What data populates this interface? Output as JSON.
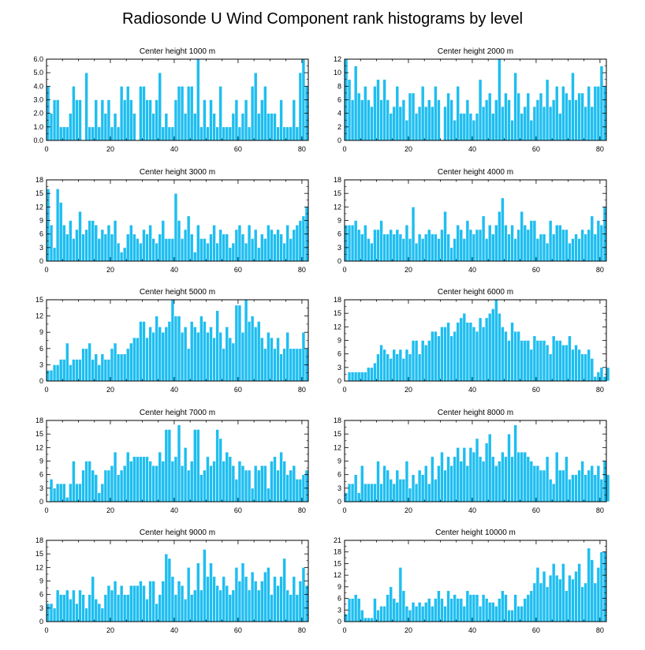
{
  "figure_title": "Radiosonde U Wind Component rank histograms by level",
  "colors": {
    "bar": "#1EBEF0",
    "bar_edge": "#ffffff",
    "axis": "#000000"
  },
  "chart_data": [
    {
      "type": "bar",
      "title": "Center height 1000 m",
      "xlim": [
        0,
        82
      ],
      "ylim": [
        0,
        6
      ],
      "yticks": [
        "0.0",
        "1.0",
        "2.0",
        "3.0",
        "4.0",
        "5.0",
        "6.0"
      ],
      "xticks": [
        "0",
        "20",
        "40",
        "60",
        "80"
      ],
      "values": [
        4,
        2,
        3,
        3,
        1,
        1,
        1,
        2,
        4,
        3,
        3,
        0,
        5,
        1,
        1,
        3,
        1,
        3,
        2,
        3,
        1,
        2,
        1,
        4,
        3,
        4,
        3,
        2,
        0,
        4,
        4,
        3,
        3,
        2,
        3,
        5,
        1,
        2,
        1,
        1,
        3,
        4,
        4,
        2,
        4,
        4,
        2,
        6,
        1,
        3,
        1,
        3,
        2,
        1,
        4,
        1,
        1,
        1,
        2,
        3,
        1,
        2,
        3,
        1,
        4,
        5,
        2,
        3,
        4,
        2,
        2,
        2,
        1,
        3,
        1,
        1,
        1,
        3,
        1,
        5,
        6,
        4
      ]
    },
    {
      "type": "bar",
      "title": "Center height 2000 m",
      "xlim": [
        0,
        82
      ],
      "ylim": [
        0,
        12
      ],
      "yticks": [
        "0",
        "2",
        "4",
        "6",
        "8",
        "10",
        "12"
      ],
      "xticks": [
        "0",
        "20",
        "40",
        "60",
        "80"
      ],
      "values": [
        12,
        9,
        6,
        11,
        7,
        6,
        8,
        6,
        5,
        8,
        9,
        6,
        9,
        6,
        4,
        5,
        8,
        5,
        6,
        3,
        7,
        7,
        4,
        5,
        8,
        5,
        6,
        5,
        8,
        6,
        0,
        5,
        7,
        6,
        3,
        8,
        4,
        4,
        6,
        4,
        3,
        4,
        9,
        5,
        6,
        7,
        4,
        6,
        12,
        5,
        7,
        6,
        3,
        10,
        7,
        4,
        5,
        7,
        3,
        5,
        6,
        7,
        5,
        9,
        5,
        6,
        8,
        4,
        8,
        7,
        6,
        10,
        6,
        7,
        7,
        5,
        8,
        5,
        8,
        8,
        11,
        8
      ]
    },
    {
      "type": "bar",
      "title": "Center height 3000 m",
      "xlim": [
        0,
        82
      ],
      "ylim": [
        0,
        18
      ],
      "yticks": [
        "0",
        "3",
        "6",
        "9",
        "12",
        "15",
        "18"
      ],
      "xticks": [
        "0",
        "20",
        "40",
        "60",
        "80"
      ],
      "values": [
        16,
        8,
        3,
        16,
        13,
        8,
        6,
        9,
        5,
        7,
        11,
        6,
        7,
        9,
        9,
        8,
        5,
        7,
        6,
        8,
        6,
        9,
        4,
        2,
        3,
        6,
        8,
        6,
        5,
        4,
        7,
        6,
        8,
        5,
        4,
        6,
        9,
        5,
        5,
        5,
        15,
        9,
        5,
        7,
        10,
        6,
        2,
        8,
        5,
        5,
        4,
        6,
        8,
        4,
        7,
        6,
        6,
        3,
        4,
        7,
        8,
        6,
        4,
        8,
        5,
        7,
        3,
        6,
        5,
        8,
        7,
        6,
        7,
        6,
        4,
        8,
        5,
        7,
        8,
        9,
        10,
        12
      ]
    },
    {
      "type": "bar",
      "title": "Center height 4000 m",
      "xlim": [
        0,
        82
      ],
      "ylim": [
        0,
        18
      ],
      "yticks": [
        "0",
        "3",
        "6",
        "9",
        "12",
        "15",
        "18"
      ],
      "xticks": [
        "0",
        "20",
        "40",
        "60",
        "80"
      ],
      "values": [
        8,
        8,
        8,
        9,
        7,
        6,
        8,
        5,
        4,
        7,
        7,
        9,
        6,
        6,
        7,
        6,
        7,
        6,
        5,
        8,
        5,
        12,
        4,
        6,
        5,
        6,
        7,
        6,
        6,
        5,
        7,
        11,
        6,
        3,
        5,
        8,
        7,
        5,
        9,
        7,
        6,
        7,
        7,
        10,
        5,
        8,
        6,
        8,
        11,
        14,
        8,
        6,
        8,
        5,
        7,
        11,
        8,
        7,
        9,
        9,
        5,
        6,
        6,
        4,
        9,
        6,
        8,
        8,
        7,
        7,
        4,
        5,
        6,
        5,
        7,
        6,
        7,
        10,
        6,
        9,
        8,
        12
      ]
    },
    {
      "type": "bar",
      "title": "Center height 5000 m",
      "xlim": [
        0,
        82
      ],
      "ylim": [
        0,
        15
      ],
      "yticks": [
        "0",
        "3",
        "6",
        "9",
        "12",
        "15"
      ],
      "xticks": [
        "0",
        "20",
        "40",
        "60",
        "80"
      ],
      "values": [
        2,
        2,
        3,
        3,
        4,
        4,
        7,
        3,
        4,
        4,
        4,
        6,
        6,
        7,
        4,
        5,
        3,
        5,
        4,
        4,
        6,
        7,
        5,
        5,
        5,
        6,
        7,
        8,
        8,
        11,
        11,
        8,
        10,
        9,
        12,
        10,
        9,
        10,
        11,
        15,
        12,
        12,
        9,
        10,
        6,
        11,
        10,
        9,
        12,
        11,
        9,
        10,
        8,
        13,
        9,
        6,
        10,
        8,
        7,
        14,
        14,
        9,
        15,
        11,
        12,
        10,
        11,
        8,
        6,
        9,
        8,
        6,
        8,
        5,
        6,
        9,
        6,
        6,
        6,
        6,
        9,
        6
      ]
    },
    {
      "type": "bar",
      "title": "Center height 6000 m",
      "xlim": [
        0,
        82
      ],
      "ylim": [
        0,
        18
      ],
      "yticks": [
        "0",
        "3",
        "6",
        "9",
        "12",
        "15",
        "18"
      ],
      "xticks": [
        "0",
        "20",
        "40",
        "60",
        "80"
      ],
      "values": [
        0,
        2,
        2,
        2,
        2,
        2,
        2,
        3,
        3,
        4,
        6,
        8,
        7,
        6,
        5,
        7,
        6,
        7,
        5,
        7,
        6,
        9,
        9,
        6,
        9,
        8,
        9,
        11,
        11,
        10,
        12,
        12,
        13,
        10,
        11,
        13,
        14,
        15,
        13,
        13,
        12,
        11,
        14,
        12,
        14,
        15,
        16,
        18,
        15,
        12,
        11,
        9,
        13,
        11,
        11,
        9,
        9,
        9,
        7,
        10,
        9,
        9,
        9,
        8,
        6,
        10,
        9,
        9,
        8,
        8,
        10,
        7,
        8,
        7,
        6,
        6,
        7,
        5,
        1,
        2,
        3,
        1,
        3
      ]
    },
    {
      "type": "bar",
      "title": "Center height 7000 m",
      "xlim": [
        0,
        82
      ],
      "ylim": [
        0,
        18
      ],
      "yticks": [
        "0",
        "3",
        "6",
        "9",
        "12",
        "15",
        "18"
      ],
      "xticks": [
        "0",
        "20",
        "40",
        "60",
        "80"
      ],
      "values": [
        0,
        5,
        3,
        4,
        4,
        4,
        1,
        4,
        9,
        4,
        4,
        7,
        9,
        9,
        7,
        6,
        2,
        4,
        7,
        7,
        8,
        11,
        6,
        7,
        8,
        11,
        9,
        10,
        10,
        10,
        10,
        10,
        9,
        8,
        8,
        11,
        9,
        16,
        16,
        9,
        10,
        17,
        8,
        12,
        7,
        9,
        16,
        16,
        6,
        7,
        10,
        8,
        9,
        16,
        14,
        9,
        11,
        10,
        8,
        5,
        9,
        8,
        7,
        7,
        3,
        8,
        7,
        8,
        8,
        3,
        9,
        10,
        7,
        11,
        9,
        6,
        7,
        8,
        5,
        5,
        6,
        7
      ]
    },
    {
      "type": "bar",
      "title": "Center height 8000 m",
      "xlim": [
        0,
        82
      ],
      "ylim": [
        0,
        18
      ],
      "yticks": [
        "0",
        "3",
        "6",
        "9",
        "12",
        "15",
        "18"
      ],
      "xticks": [
        "0",
        "20",
        "40",
        "60",
        "80"
      ],
      "values": [
        2,
        4,
        4,
        6,
        2,
        8,
        4,
        4,
        4,
        4,
        9,
        4,
        8,
        7,
        5,
        4,
        7,
        5,
        5,
        9,
        3,
        6,
        4,
        7,
        6,
        8,
        4,
        10,
        5,
        8,
        11,
        7,
        10,
        8,
        10,
        12,
        9,
        12,
        8,
        12,
        11,
        14,
        10,
        9,
        13,
        15,
        10,
        8,
        9,
        11,
        10,
        15,
        10,
        17,
        11,
        11,
        11,
        10,
        9,
        8,
        8,
        7,
        7,
        10,
        5,
        4,
        11,
        7,
        7,
        10,
        5,
        6,
        6,
        7,
        9,
        6,
        7,
        8,
        6,
        8,
        5,
        9,
        6
      ]
    },
    {
      "type": "bar",
      "title": "Center height 9000 m",
      "xlim": [
        0,
        82
      ],
      "ylim": [
        0,
        18
      ],
      "yticks": [
        "0",
        "3",
        "6",
        "9",
        "12",
        "15",
        "18"
      ],
      "xticks": [
        "0",
        "20",
        "40",
        "60",
        "80"
      ],
      "values": [
        4,
        4,
        3,
        7,
        6,
        6,
        7,
        5,
        7,
        4,
        7,
        6,
        3,
        6,
        10,
        5,
        4,
        3,
        6,
        8,
        7,
        9,
        6,
        8,
        6,
        6,
        8,
        8,
        8,
        9,
        8,
        5,
        9,
        9,
        4,
        6,
        9,
        15,
        14,
        10,
        6,
        9,
        8,
        5,
        12,
        6,
        7,
        13,
        7,
        16,
        10,
        13,
        10,
        8,
        7,
        10,
        8,
        6,
        7,
        12,
        9,
        13,
        10,
        7,
        11,
        9,
        7,
        9,
        11,
        12,
        6,
        10,
        8,
        10,
        14,
        7,
        6,
        10,
        6,
        9,
        12,
        8
      ]
    },
    {
      "type": "bar",
      "title": "Center height 10000 m",
      "xlim": [
        0,
        82
      ],
      "ylim": [
        0,
        21
      ],
      "yticks": [
        "0",
        "3",
        "6",
        "9",
        "12",
        "15",
        "18",
        "21"
      ],
      "xticks": [
        "0",
        "20",
        "40",
        "60",
        "80"
      ],
      "values": [
        2,
        6,
        6,
        7,
        6,
        3,
        1,
        1,
        1,
        6,
        3,
        4,
        4,
        7,
        9,
        6,
        5,
        14,
        8,
        4,
        3,
        5,
        4,
        5,
        4,
        5,
        6,
        4,
        6,
        8,
        6,
        4,
        8,
        6,
        7,
        6,
        6,
        4,
        8,
        7,
        7,
        7,
        4,
        7,
        6,
        5,
        5,
        4,
        6,
        8,
        7,
        3,
        3,
        7,
        4,
        4,
        6,
        7,
        8,
        10,
        14,
        10,
        13,
        9,
        12,
        15,
        12,
        11,
        15,
        8,
        12,
        11,
        13,
        15,
        9,
        10,
        19,
        16,
        10,
        14,
        18,
        18
      ]
    }
  ]
}
